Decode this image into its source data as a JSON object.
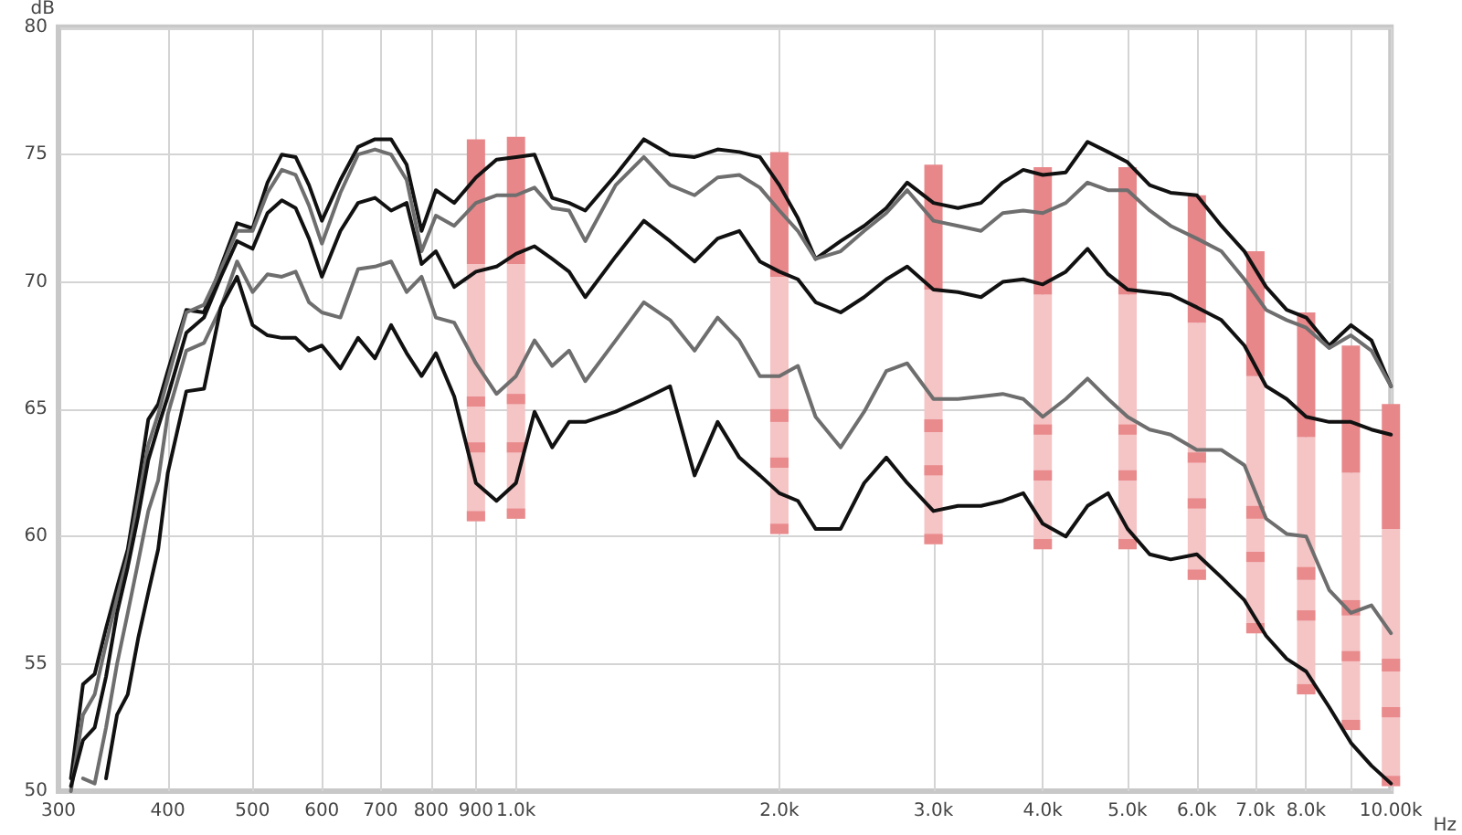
{
  "chart_data": {
    "type": "line",
    "xlabel": "Hz",
    "ylabel": "dB",
    "log": "x",
    "grid": true,
    "marker": "none",
    "line_style": "solid",
    "xlim": [
      300,
      10000
    ],
    "xticks": [
      300,
      400,
      500,
      600,
      700,
      800,
      900,
      {
        "value": 1000,
        "label": "1.0k"
      },
      {
        "value": 2000,
        "label": "2.0k"
      },
      {
        "value": 3000,
        "label": "3.0k"
      },
      {
        "value": 4000,
        "label": "4.0k"
      },
      {
        "value": 5000,
        "label": "5.0k"
      },
      {
        "value": 6000,
        "label": "6.0k"
      },
      {
        "value": 7000,
        "label": "7.0k"
      },
      {
        "value": 8000,
        "label": "8.0k"
      },
      {
        "value": 9000,
        "label": null
      },
      {
        "value": 10000,
        "label": "10.00k"
      }
    ],
    "ylim": [
      50,
      80
    ],
    "yticks": [
      50,
      55,
      60,
      65,
      70,
      75,
      80
    ],
    "x": [
      310,
      320,
      330,
      340,
      350,
      360,
      370,
      380,
      390,
      400,
      420,
      440,
      460,
      480,
      500,
      520,
      540,
      560,
      580,
      600,
      630,
      660,
      690,
      720,
      750,
      780,
      810,
      850,
      900,
      950,
      1000,
      1050,
      1100,
      1150,
      1200,
      1300,
      1400,
      1500,
      1600,
      1700,
      1800,
      1900,
      2000,
      2100,
      2200,
      2350,
      2500,
      2650,
      2800,
      3000,
      3200,
      3400,
      3600,
      3800,
      4000,
      4250,
      4500,
      4750,
      5000,
      5300,
      5600,
      6000,
      6400,
      6800,
      7200,
      7600,
      8000,
      8500,
      9000,
      9500,
      10000
    ],
    "series": [
      {
        "type": "bar",
        "color": "#f5c4c5",
        "x": [
          900,
          1000,
          2000,
          3000,
          4000,
          5000,
          6000,
          7000,
          8000,
          9000,
          10000
        ],
        "base": [
          60.6,
          60.7,
          60.1,
          59.7,
          59.5,
          59.5,
          58.3,
          56.2,
          53.8,
          52.4,
          50.2
        ],
        "values": [
          10.1,
          10.0,
          10.1,
          10.0,
          10.0,
          10.0,
          10.1,
          10.1,
          10.1,
          10.1,
          10.1
        ]
      },
      {
        "type": "bar",
        "color": "#e98a8c",
        "x": [
          900,
          1000,
          2000,
          3000,
          4000,
          5000,
          6000,
          7000,
          8000,
          9000,
          10000
        ],
        "base": [
          65.1,
          65.2,
          64.5,
          64.1,
          64.0,
          64.0,
          62.9,
          60.7,
          58.3,
          56.9,
          54.7
        ],
        "values": [
          0.4,
          0.4,
          0.5,
          0.5,
          0.4,
          0.4,
          0.4,
          0.5,
          0.5,
          0.6,
          0.5
        ]
      },
      {
        "type": "bar",
        "color": "#e98a8c",
        "x": [
          900,
          1000,
          2000,
          3000,
          4000,
          5000,
          6000,
          7000,
          8000,
          9000,
          10000
        ],
        "base": [
          63.3,
          63.3,
          62.7,
          62.4,
          62.2,
          62.2,
          61.1,
          59.0,
          56.7,
          55.1,
          52.9
        ],
        "values": [
          0.4,
          0.4,
          0.4,
          0.4,
          0.4,
          0.4,
          0.4,
          0.4,
          0.4,
          0.4,
          0.4
        ]
      },
      {
        "type": "bar",
        "color": "#e98a8c",
        "x": [
          900,
          1000,
          2000,
          3000,
          4000,
          5000,
          6000,
          7000,
          8000,
          9000,
          10000
        ],
        "base": [
          60.6,
          60.7,
          60.1,
          59.7,
          59.5,
          59.5,
          58.3,
          56.2,
          53.8,
          52.4,
          50.2
        ],
        "values": [
          0.4,
          0.4,
          0.4,
          0.4,
          0.4,
          0.4,
          0.4,
          0.4,
          0.4,
          0.4,
          0.4
        ]
      },
      {
        "type": "bar",
        "color": "#e8878a",
        "x": [
          900,
          1000,
          2000,
          3000,
          4000,
          5000,
          6000,
          7000,
          8000,
          9000,
          10000
        ],
        "base": [
          70.7,
          70.7,
          70.2,
          69.7,
          69.5,
          69.5,
          68.4,
          66.3,
          63.9,
          62.5,
          60.3
        ],
        "values": [
          4.9,
          5.0,
          4.9,
          4.9,
          5.0,
          5.0,
          5.0,
          4.9,
          4.9,
          5.0,
          4.9
        ]
      },
      {
        "color": "#111111",
        "values": [
          50.5,
          54.2,
          54.6,
          56.4,
          58.0,
          59.5,
          62.0,
          64.6,
          65.2,
          66.5,
          68.9,
          68.8,
          70.6,
          72.3,
          72.1,
          73.9,
          75.0,
          74.9,
          73.8,
          72.4,
          74.0,
          75.3,
          75.6,
          75.6,
          74.6,
          72.0,
          73.6,
          73.1,
          74.1,
          74.8,
          74.9,
          75.0,
          73.3,
          73.1,
          72.8,
          74.2,
          75.6,
          75.0,
          74.9,
          75.2,
          75.1,
          74.9,
          73.8,
          72.5,
          70.9,
          71.6,
          72.2,
          72.9,
          73.9,
          73.1,
          72.9,
          73.1,
          73.9,
          74.4,
          74.2,
          74.3,
          75.5,
          75.1,
          74.7,
          73.8,
          73.5,
          73.4,
          72.2,
          71.2,
          69.8,
          68.9,
          68.6,
          67.5,
          68.3,
          67.7,
          65.9
        ]
      },
      {
        "color": "#6e6e6e",
        "values": [
          50.0,
          53.0,
          53.8,
          55.8,
          57.6,
          59.2,
          61.4,
          63.6,
          64.8,
          66.2,
          68.8,
          69.1,
          70.5,
          72.0,
          72.0,
          73.5,
          74.4,
          74.2,
          73.0,
          71.5,
          73.5,
          75.0,
          75.2,
          75.0,
          74.0,
          71.2,
          72.6,
          72.2,
          73.1,
          73.4,
          73.4,
          73.7,
          72.9,
          72.8,
          71.6,
          73.8,
          74.9,
          73.8,
          73.4,
          74.1,
          74.2,
          73.7,
          72.8,
          72.0,
          70.9,
          71.2,
          72.0,
          72.7,
          73.6,
          72.4,
          72.2,
          72.0,
          72.7,
          72.8,
          72.7,
          73.1,
          73.9,
          73.6,
          73.6,
          72.8,
          72.2,
          71.7,
          71.2,
          70.1,
          68.9,
          68.5,
          68.2,
          67.4,
          67.9,
          67.3,
          65.9
        ]
      },
      {
        "color": "#111111",
        "values": [
          50.2,
          52.0,
          52.5,
          54.5,
          57.0,
          58.8,
          60.8,
          63.0,
          64.3,
          65.5,
          68.0,
          68.6,
          70.2,
          71.6,
          71.3,
          72.7,
          73.2,
          72.9,
          71.7,
          70.2,
          72.0,
          73.1,
          73.3,
          72.8,
          73.1,
          70.7,
          71.2,
          69.8,
          70.4,
          70.6,
          71.1,
          71.4,
          70.9,
          70.4,
          69.4,
          71.0,
          72.4,
          71.6,
          70.8,
          71.7,
          72.0,
          70.8,
          70.4,
          70.1,
          69.2,
          68.8,
          69.4,
          70.1,
          70.6,
          69.7,
          69.6,
          69.4,
          70.0,
          70.1,
          69.9,
          70.4,
          71.3,
          70.3,
          69.7,
          69.6,
          69.5,
          69.0,
          68.5,
          67.5,
          65.9,
          65.4,
          64.7,
          64.5,
          64.5,
          64.2,
          64.0
        ]
      },
      {
        "color": "#6e6e6e",
        "values": [
          null,
          50.5,
          50.3,
          52.5,
          55.0,
          57.0,
          59.0,
          61.0,
          62.2,
          64.8,
          67.3,
          67.6,
          69.0,
          70.8,
          69.6,
          70.3,
          70.2,
          70.4,
          69.2,
          68.8,
          68.6,
          70.5,
          70.6,
          70.8,
          69.6,
          70.2,
          68.6,
          68.4,
          66.8,
          65.6,
          66.3,
          67.7,
          66.7,
          67.3,
          66.1,
          67.7,
          69.2,
          68.5,
          67.3,
          68.6,
          67.7,
          66.3,
          66.3,
          66.7,
          64.7,
          63.5,
          64.9,
          66.5,
          66.8,
          65.4,
          65.4,
          65.5,
          65.6,
          65.4,
          64.7,
          65.4,
          66.2,
          65.4,
          64.7,
          64.2,
          64.0,
          63.4,
          63.4,
          62.8,
          60.7,
          60.1,
          60.0,
          57.9,
          57.0,
          57.3,
          56.2
        ]
      },
      {
        "color": "#111111",
        "values": [
          null,
          null,
          null,
          50.5,
          53.0,
          53.8,
          56.0,
          57.8,
          59.5,
          62.5,
          65.7,
          65.8,
          69.0,
          70.2,
          68.3,
          67.9,
          67.8,
          67.8,
          67.3,
          67.5,
          66.6,
          67.8,
          67.0,
          68.3,
          67.2,
          66.3,
          67.2,
          65.5,
          62.1,
          61.4,
          62.1,
          64.9,
          63.5,
          64.5,
          64.5,
          64.9,
          65.4,
          65.9,
          62.4,
          64.5,
          63.1,
          62.4,
          61.7,
          61.4,
          60.3,
          60.3,
          62.1,
          63.1,
          62.1,
          61.0,
          61.2,
          61.2,
          61.4,
          61.7,
          60.5,
          60.0,
          61.2,
          61.7,
          60.3,
          59.3,
          59.1,
          59.3,
          58.4,
          57.5,
          56.1,
          55.2,
          54.7,
          53.3,
          51.9,
          51.0,
          50.3
        ]
      }
    ]
  }
}
